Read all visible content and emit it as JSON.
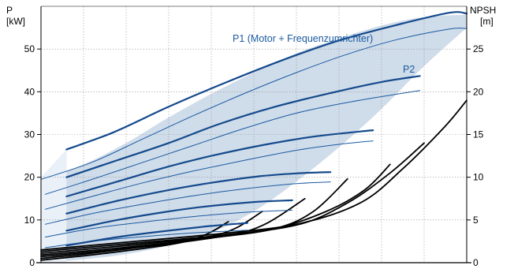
{
  "chart_data": {
    "type": "line",
    "title": "",
    "left_axis": {
      "label_line1": "P",
      "label_line2": "[kW]",
      "range": [
        0,
        60
      ],
      "ticks": [
        0,
        10,
        20,
        30,
        40,
        50
      ]
    },
    "right_axis": {
      "label_line1": "NPSH",
      "label_line2": "[m]",
      "range": [
        0,
        30
      ],
      "ticks": [
        0,
        5,
        10,
        15,
        20,
        25
      ]
    },
    "x_range": [
      0,
      10
    ],
    "grid": true,
    "annotations": {
      "p1": "P1 (Motor + Frequenzumrichter)",
      "p2": "P2"
    },
    "colors": {
      "p1_curve": "#144a8c",
      "p2_curve": "#1b5aa0",
      "npsh_curve": "#000000",
      "region_fill": "#cfdcea",
      "grid": "#999999"
    },
    "power_envelope": {
      "upper": [
        [
          0,
          19.5
        ],
        [
          1,
          23
        ],
        [
          2,
          28
        ],
        [
          3,
          34
        ],
        [
          4,
          39.5
        ],
        [
          5,
          44.5
        ],
        [
          6,
          49
        ],
        [
          7,
          52.5
        ],
        [
          8,
          55.5
        ],
        [
          9,
          57.5
        ],
        [
          10,
          58
        ]
      ],
      "lower_right": [
        [
          10,
          55
        ],
        [
          9,
          46
        ],
        [
          8,
          36
        ],
        [
          7,
          27
        ],
        [
          6,
          19
        ],
        [
          5,
          12
        ],
        [
          4,
          7
        ],
        [
          3,
          4
        ],
        [
          2,
          2
        ],
        [
          1,
          0.8
        ],
        [
          0,
          0
        ]
      ]
    },
    "p1_series": [
      {
        "values": [
          [
            0.6,
            26.5
          ],
          [
            1.7,
            30.5
          ],
          [
            3,
            36.5
          ],
          [
            4.3,
            42
          ],
          [
            5.7,
            47.5
          ],
          [
            7,
            52
          ],
          [
            8.3,
            55.5
          ],
          [
            9.6,
            58.5
          ],
          [
            10,
            58.3
          ]
        ]
      },
      {
        "values": [
          [
            0.6,
            20
          ],
          [
            1.8,
            24
          ],
          [
            3,
            28
          ],
          [
            4.2,
            32.5
          ],
          [
            5.5,
            36.5
          ],
          [
            6.8,
            39.7
          ],
          [
            8,
            42.3
          ],
          [
            8.9,
            43.7
          ]
        ]
      },
      {
        "values": [
          [
            0.6,
            15.5
          ],
          [
            1.8,
            19
          ],
          [
            3,
            22.5
          ],
          [
            4,
            25
          ],
          [
            5.2,
            27.5
          ],
          [
            6.4,
            29.5
          ],
          [
            7.5,
            30.7
          ],
          [
            7.8,
            31
          ]
        ]
      },
      {
        "values": [
          [
            0.6,
            11.5
          ],
          [
            1.8,
            14.5
          ],
          [
            3,
            17
          ],
          [
            4,
            18.7
          ],
          [
            5.1,
            20.2
          ],
          [
            6,
            20.9
          ],
          [
            6.8,
            21.2
          ]
        ]
      },
      {
        "values": [
          [
            0.6,
            7.5
          ],
          [
            1.8,
            10
          ],
          [
            3,
            12
          ],
          [
            4,
            13.3
          ],
          [
            5,
            14.2
          ],
          [
            5.9,
            14.6
          ]
        ]
      },
      {
        "values": [
          [
            0.6,
            4
          ],
          [
            1.8,
            6
          ],
          [
            3,
            7.5
          ],
          [
            4,
            8.6
          ],
          [
            4.85,
            9.3
          ]
        ]
      }
    ],
    "p2_series": [
      {
        "values": [
          [
            0,
            19.5
          ],
          [
            1.2,
            23.5
          ],
          [
            2.4,
            29
          ],
          [
            3.6,
            34.5
          ],
          [
            4.8,
            39.7
          ],
          [
            6,
            44.5
          ],
          [
            7.2,
            48.8
          ],
          [
            8.4,
            52.3
          ],
          [
            9.6,
            54.7
          ],
          [
            10,
            54.8
          ]
        ]
      },
      {
        "values": [
          [
            0.1,
            16
          ],
          [
            1.2,
            19.5
          ],
          [
            2.4,
            23.5
          ],
          [
            3.6,
            27.5
          ],
          [
            4.8,
            31.5
          ],
          [
            6,
            35
          ],
          [
            7.2,
            37.5
          ],
          [
            8.4,
            39.5
          ],
          [
            8.9,
            40.3
          ]
        ]
      },
      {
        "values": [
          [
            0.1,
            12.5
          ],
          [
            1.2,
            15.5
          ],
          [
            2.4,
            18.7
          ],
          [
            3.6,
            21.5
          ],
          [
            4.8,
            24
          ],
          [
            6,
            26.3
          ],
          [
            7,
            27.7
          ],
          [
            7.8,
            28.5
          ]
        ]
      },
      {
        "values": [
          [
            0.1,
            9
          ],
          [
            1.2,
            11.5
          ],
          [
            2.4,
            13.7
          ],
          [
            3.6,
            15.7
          ],
          [
            4.8,
            17.3
          ],
          [
            6,
            18.5
          ],
          [
            6.8,
            18.9
          ]
        ]
      },
      {
        "values": [
          [
            0.1,
            6
          ],
          [
            1.2,
            8
          ],
          [
            2.4,
            9.5
          ],
          [
            3.6,
            10.8
          ],
          [
            4.8,
            11.8
          ],
          [
            5.9,
            12.3
          ]
        ]
      },
      {
        "values": [
          [
            0.1,
            3.5
          ],
          [
            1.2,
            5
          ],
          [
            2.4,
            6.1
          ],
          [
            3.6,
            7
          ],
          [
            4.85,
            7.6
          ]
        ]
      }
    ],
    "npsh_series": [
      {
        "values": [
          [
            0,
            0.3
          ],
          [
            1,
            0.8
          ],
          [
            2,
            1.4
          ],
          [
            3,
            2.1
          ],
          [
            3.5,
            2.6
          ],
          [
            4,
            3.6
          ],
          [
            4.4,
            4.8
          ]
        ]
      },
      {
        "values": [
          [
            0,
            0.5
          ],
          [
            1,
            1
          ],
          [
            2,
            1.6
          ],
          [
            3,
            2.3
          ],
          [
            4,
            3.1
          ],
          [
            4.6,
            4.1
          ],
          [
            5.2,
            6
          ]
        ]
      },
      {
        "values": [
          [
            0,
            0.7
          ],
          [
            1.5,
            1.4
          ],
          [
            3,
            2.2
          ],
          [
            4.5,
            3.3
          ],
          [
            5.3,
            4.6
          ],
          [
            6.2,
            7.5
          ]
        ]
      },
      {
        "values": [
          [
            0,
            0.9
          ],
          [
            2,
            1.8
          ],
          [
            4,
            2.9
          ],
          [
            5.5,
            4
          ],
          [
            6.4,
            6
          ],
          [
            7.2,
            9.8
          ]
        ]
      },
      {
        "values": [
          [
            0,
            1.1
          ],
          [
            2,
            2
          ],
          [
            4,
            3
          ],
          [
            5.5,
            4
          ],
          [
            6.7,
            6
          ],
          [
            7.6,
            8.5
          ],
          [
            8.2,
            11.5
          ]
        ]
      },
      {
        "values": [
          [
            0,
            1.3
          ],
          [
            2,
            2.2
          ],
          [
            4,
            3.1
          ],
          [
            6,
            4.4
          ],
          [
            7.2,
            7
          ],
          [
            8.2,
            10.5
          ],
          [
            9,
            14
          ]
        ]
      },
      {
        "values": [
          [
            0,
            1.5
          ],
          [
            2,
            2.4
          ],
          [
            4,
            3.3
          ],
          [
            6,
            4.5
          ],
          [
            7.5,
            7
          ],
          [
            8.5,
            11
          ],
          [
            9.5,
            16
          ],
          [
            10,
            19
          ]
        ]
      }
    ]
  }
}
